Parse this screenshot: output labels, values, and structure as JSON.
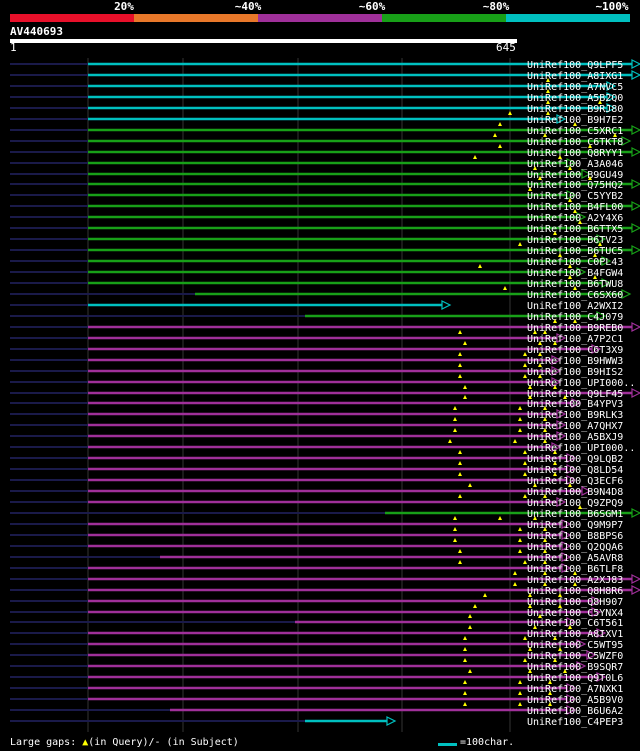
{
  "legend": {
    "labels": [
      "20%",
      "~40%",
      "~60%",
      "~80%",
      "~100%"
    ],
    "colors": [
      "#e8102a",
      "#e8782a",
      "#a0309a",
      "#18a018",
      "#00c0c0"
    ]
  },
  "query": {
    "id": "AV440693",
    "start": "1",
    "end": "645"
  },
  "footer": {
    "gaps_prefix": "Large gaps: ",
    "gaps_query": "(in Query)/- (in Subject)",
    "scale_text": "=100char."
  },
  "hits": [
    {
      "name": "UniRef100_Q9LPF5",
      "cls": "cyan",
      "start": 88,
      "end": 640,
      "gaps": []
    },
    {
      "name": "UniRef100_A8IXG1",
      "cls": "cyan",
      "start": 88,
      "end": 640,
      "gaps": []
    },
    {
      "name": "UniRef100_A7NVC5",
      "cls": "cyan",
      "start": 88,
      "end": 615,
      "gaps": [
        548
      ]
    },
    {
      "name": "UniRef100_A5B2Q0",
      "cls": "cyan",
      "start": 88,
      "end": 615,
      "gaps": [
        548
      ]
    },
    {
      "name": "UniRef100_B9RJ80",
      "cls": "cyan",
      "start": 88,
      "end": 615,
      "gaps": [
        548,
        600
      ]
    },
    {
      "name": "UniRef100_B9H7E2",
      "cls": "cyan",
      "start": 88,
      "end": 565,
      "gaps": [
        510,
        548
      ]
    },
    {
      "name": "UniRef100_C5XRC1",
      "cls": "green",
      "start": 88,
      "end": 640,
      "gaps": [
        500,
        575
      ]
    },
    {
      "name": "UniRef100_C6TKT8",
      "cls": "green",
      "start": 88,
      "end": 630,
      "gaps": [
        495,
        545,
        615
      ]
    },
    {
      "name": "UniRef100_Q8RYY1",
      "cls": "green",
      "start": 88,
      "end": 640,
      "gaps": [
        500,
        590
      ]
    },
    {
      "name": "UniRef100_A3A046",
      "cls": "green",
      "start": 88,
      "end": 575,
      "gaps": [
        475,
        560
      ]
    },
    {
      "name": "UniRef100_B9GU49",
      "cls": "green",
      "start": 88,
      "end": 590,
      "gaps": [
        535,
        570
      ]
    },
    {
      "name": "UniRef100_Q75HQ2",
      "cls": "green",
      "start": 88,
      "end": 640,
      "gaps": [
        540,
        590
      ]
    },
    {
      "name": "UniRef100_C5YYB2",
      "cls": "green",
      "start": 88,
      "end": 575,
      "gaps": [
        530
      ]
    },
    {
      "name": "UniRef100_B4FL00",
      "cls": "green",
      "start": 88,
      "end": 640,
      "gaps": [
        570
      ]
    },
    {
      "name": "UniRef100_A2Y4X6",
      "cls": "green",
      "start": 88,
      "end": 585,
      "gaps": [
        575
      ]
    },
    {
      "name": "UniRef100_B6TTX5",
      "cls": "green",
      "start": 88,
      "end": 640,
      "gaps": [
        580
      ]
    },
    {
      "name": "UniRef100_B6TV23",
      "cls": "green",
      "start": 88,
      "end": 605,
      "gaps": [
        555
      ]
    },
    {
      "name": "UniRef100_B6TUC5",
      "cls": "green",
      "start": 88,
      "end": 640,
      "gaps": [
        520,
        600
      ]
    },
    {
      "name": "UniRef100_C0PL43",
      "cls": "green",
      "start": 88,
      "end": 610,
      "gaps": [
        560,
        595
      ]
    },
    {
      "name": "UniRef100_B4FGW4",
      "cls": "green",
      "start": 88,
      "end": 585,
      "gaps": [
        480,
        570
      ]
    },
    {
      "name": "UniRef100_B6TWU8",
      "cls": "green",
      "start": 88,
      "end": 610,
      "gaps": [
        570,
        595
      ]
    },
    {
      "name": "UniRef100_C6SX60",
      "cls": "green",
      "start": 195,
      "end": 630,
      "gaps": [
        505,
        575
      ]
    },
    {
      "name": "UniRef100_A2WXI2",
      "cls": "cyan",
      "start": 88,
      "end": 450,
      "gaps": []
    },
    {
      "name": "UniRef100_C4J079",
      "cls": "green",
      "start": 305,
      "end": 605,
      "gaps": []
    },
    {
      "name": "UniRef100_B9REB0",
      "cls": "purple",
      "start": 88,
      "end": 640,
      "gaps": [
        555,
        575
      ]
    },
    {
      "name": "UniRef100_A7P2C1",
      "cls": "purple",
      "start": 88,
      "end": 565,
      "gaps": [
        460,
        535,
        545
      ]
    },
    {
      "name": "UniRef100_C6T3X9",
      "cls": "purple",
      "start": 88,
      "end": 600,
      "gaps": [
        465,
        540,
        555
      ]
    },
    {
      "name": "UniRef100_B9HWW3",
      "cls": "purple",
      "start": 88,
      "end": 560,
      "gaps": [
        460,
        525,
        540
      ]
    },
    {
      "name": "UniRef100_B9HIS2",
      "cls": "purple",
      "start": 88,
      "end": 560,
      "gaps": [
        460,
        525,
        540
      ]
    },
    {
      "name": "UniRef100_UPI000..",
      "cls": "purple",
      "start": 88,
      "end": 560,
      "gaps": [
        460,
        525,
        540
      ]
    },
    {
      "name": "UniRef100_Q9LF45",
      "cls": "purple",
      "start": 88,
      "end": 640,
      "gaps": [
        465,
        530,
        555
      ]
    },
    {
      "name": "UniRef100_B4YPV3",
      "cls": "purple",
      "start": 88,
      "end": 580,
      "gaps": [
        465,
        530,
        565
      ]
    },
    {
      "name": "UniRef100_B9RLK3",
      "cls": "purple",
      "start": 88,
      "end": 565,
      "gaps": [
        455,
        520,
        545
      ]
    },
    {
      "name": "UniRef100_A7QHX7",
      "cls": "purple",
      "start": 88,
      "end": 565,
      "gaps": [
        455,
        520,
        545
      ]
    },
    {
      "name": "UniRef100_A5BXJ9",
      "cls": "purple",
      "start": 88,
      "end": 565,
      "gaps": [
        455,
        520,
        545
      ]
    },
    {
      "name": "UniRef100_UPI000..",
      "cls": "purple",
      "start": 88,
      "end": 560,
      "gaps": [
        450,
        515,
        545
      ]
    },
    {
      "name": "UniRef100_Q9LQB2",
      "cls": "purple",
      "start": 88,
      "end": 575,
      "gaps": [
        460,
        525,
        555
      ]
    },
    {
      "name": "UniRef100_Q8LD54",
      "cls": "purple",
      "start": 88,
      "end": 575,
      "gaps": [
        460,
        525,
        555
      ]
    },
    {
      "name": "UniRef100_Q3ECF6",
      "cls": "purple",
      "start": 88,
      "end": 575,
      "gaps": [
        460,
        525,
        555
      ]
    },
    {
      "name": "UniRef100_B9N4D8",
      "cls": "purple",
      "start": 88,
      "end": 590,
      "gaps": [
        470,
        535,
        570
      ]
    },
    {
      "name": "UniRef100_Q9ZPQ9",
      "cls": "purple",
      "start": 88,
      "end": 565,
      "gaps": [
        460,
        525,
        545
      ]
    },
    {
      "name": "UniRef100_B6SGM1",
      "cls": "green",
      "start": 385,
      "end": 640,
      "gaps": [
        580
      ]
    },
    {
      "name": "UniRef100_Q9M9P7",
      "cls": "purple",
      "start": 88,
      "end": 570,
      "gaps": [
        455,
        500,
        535
      ]
    },
    {
      "name": "UniRef100_B8BPS6",
      "cls": "purple",
      "start": 88,
      "end": 570,
      "gaps": [
        455,
        520,
        545
      ]
    },
    {
      "name": "UniRef100_Q2QQA6",
      "cls": "purple",
      "start": 88,
      "end": 570,
      "gaps": [
        455,
        520,
        545
      ]
    },
    {
      "name": "UniRef100_A5AVR8",
      "cls": "purple",
      "start": 160,
      "end": 570,
      "gaps": [
        460,
        520,
        545
      ]
    },
    {
      "name": "UniRef100_B6TLF8",
      "cls": "purple",
      "start": 88,
      "end": 570,
      "gaps": [
        460,
        525,
        545
      ]
    },
    {
      "name": "UniRef100_A2XJ83",
      "cls": "purple",
      "start": 88,
      "end": 640,
      "gaps": [
        515,
        545,
        575
      ]
    },
    {
      "name": "UniRef100_Q8H8R6",
      "cls": "purple",
      "start": 88,
      "end": 640,
      "gaps": [
        515,
        545,
        575
      ]
    },
    {
      "name": "UniRef100_Q8H907",
      "cls": "purple",
      "start": 88,
      "end": 600,
      "gaps": [
        485,
        530,
        560
      ]
    },
    {
      "name": "UniRef100_C5YNX4",
      "cls": "purple",
      "start": 88,
      "end": 600,
      "gaps": [
        475,
        530,
        560
      ]
    },
    {
      "name": "UniRef100_C6T561",
      "cls": "purple",
      "start": 295,
      "end": 575,
      "gaps": [
        470,
        540
      ]
    },
    {
      "name": "UniRef100_A8IXV1",
      "cls": "purple",
      "start": 88,
      "end": 605,
      "gaps": [
        470,
        535,
        570
      ]
    },
    {
      "name": "UniRef100_C5WT95",
      "cls": "purple",
      "start": 88,
      "end": 585,
      "gaps": [
        465,
        525,
        555
      ]
    },
    {
      "name": "UniRef100_C5WZF0",
      "cls": "purple",
      "start": 88,
      "end": 595,
      "gaps": [
        465,
        530,
        560
      ]
    },
    {
      "name": "UniRef100_B9SQR7",
      "cls": "purple",
      "start": 88,
      "end": 585,
      "gaps": [
        465,
        525,
        555
      ]
    },
    {
      "name": "UniRef100_Q9T0L6",
      "cls": "purple",
      "start": 88,
      "end": 605,
      "gaps": [
        470,
        530,
        565
      ]
    },
    {
      "name": "UniRef100_A7NXK1",
      "cls": "purple",
      "start": 88,
      "end": 575,
      "gaps": [
        465,
        520,
        550
      ]
    },
    {
      "name": "UniRef100_A5B9V0",
      "cls": "purple",
      "start": 88,
      "end": 575,
      "gaps": [
        465,
        520,
        550
      ]
    },
    {
      "name": "UniRef100_B6U6A2",
      "cls": "purple",
      "start": 170,
      "end": 575,
      "gaps": [
        465,
        520,
        550
      ]
    },
    {
      "name": "UniRef100_C4PEP3",
      "cls": "cyan",
      "start": 305,
      "end": 395,
      "gaps": []
    }
  ]
}
